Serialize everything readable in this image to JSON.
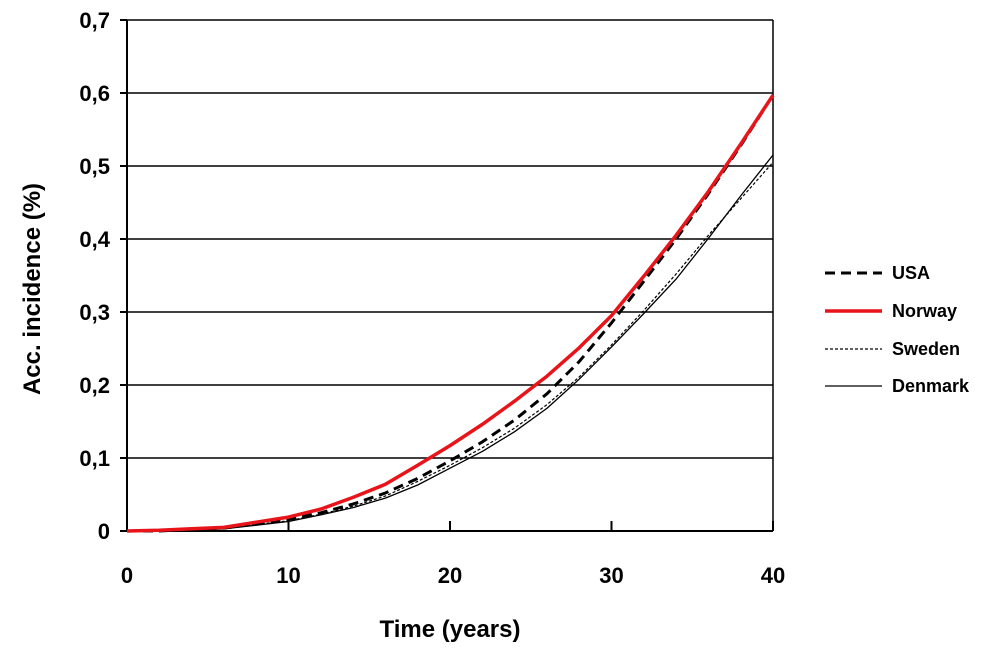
{
  "chart_data": {
    "type": "line",
    "title": "",
    "xlabel": "Time (years)",
    "ylabel": "Acc. incidence (%)",
    "xlim": [
      0,
      40
    ],
    "ylim": [
      0,
      0.7
    ],
    "x_ticks": [
      0,
      10,
      20,
      30,
      40
    ],
    "x_tick_labels": [
      "0",
      "10",
      "20",
      "30",
      "40"
    ],
    "y_ticks": [
      0,
      0.1,
      0.2,
      0.3,
      0.4,
      0.5,
      0.6,
      0.7
    ],
    "y_tick_labels": [
      "0",
      "0,1",
      "0,2",
      "0,3",
      "0,4",
      "0,5",
      "0,6",
      "0,7"
    ],
    "grid": "horizontal",
    "legend_position": "right",
    "x": [
      0,
      2,
      4,
      6,
      8,
      10,
      12,
      14,
      16,
      18,
      20,
      22,
      24,
      26,
      28,
      30,
      32,
      34,
      36,
      38,
      40
    ],
    "series": [
      {
        "name": "USA",
        "style": "thick-dashed",
        "color": "#000000",
        "values": [
          0,
          0,
          0.002,
          0.004,
          0.01,
          0.016,
          0.025,
          0.037,
          0.052,
          0.072,
          0.096,
          0.122,
          0.152,
          0.188,
          0.232,
          0.285,
          0.342,
          0.4,
          0.462,
          0.528,
          0.597
        ]
      },
      {
        "name": "Norway",
        "style": "thick-solid",
        "color": "#e8141a",
        "values": [
          0,
          0.001,
          0.003,
          0.005,
          0.012,
          0.019,
          0.03,
          0.046,
          0.064,
          0.09,
          0.117,
          0.146,
          0.178,
          0.212,
          0.251,
          0.295,
          0.349,
          0.405,
          0.465,
          0.53,
          0.597
        ]
      },
      {
        "name": "Sweden",
        "style": "thin-dashed",
        "color": "#000000",
        "values": [
          0,
          0,
          0.001,
          0.004,
          0.009,
          0.014,
          0.023,
          0.034,
          0.048,
          0.068,
          0.09,
          0.114,
          0.141,
          0.173,
          0.211,
          0.255,
          0.302,
          0.352,
          0.405,
          0.455,
          0.505
        ]
      },
      {
        "name": "Denmark",
        "style": "thin-solid",
        "color": "#000000",
        "values": [
          0,
          0,
          0.001,
          0.003,
          0.008,
          0.013,
          0.022,
          0.032,
          0.045,
          0.063,
          0.086,
          0.109,
          0.136,
          0.168,
          0.208,
          0.252,
          0.298,
          0.345,
          0.401,
          0.459,
          0.515
        ]
      }
    ]
  }
}
